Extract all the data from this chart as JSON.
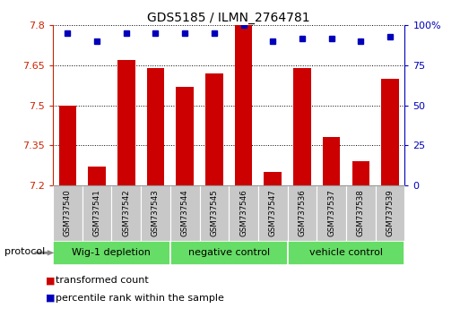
{
  "title": "GDS5185 / ILMN_2764781",
  "samples": [
    "GSM737540",
    "GSM737541",
    "GSM737542",
    "GSM737543",
    "GSM737544",
    "GSM737545",
    "GSM737546",
    "GSM737547",
    "GSM737536",
    "GSM737537",
    "GSM737538",
    "GSM737539"
  ],
  "red_values": [
    7.5,
    7.27,
    7.67,
    7.64,
    7.57,
    7.62,
    7.8,
    7.25,
    7.64,
    7.38,
    7.29,
    7.6
  ],
  "blue_values": [
    95,
    90,
    95,
    95,
    95,
    95,
    100,
    90,
    92,
    92,
    90,
    93
  ],
  "ylim_left": [
    7.2,
    7.8
  ],
  "ylim_right": [
    0,
    100
  ],
  "yticks_left": [
    7.2,
    7.35,
    7.5,
    7.65,
    7.8
  ],
  "yticks_right": [
    0,
    25,
    50,
    75,
    100
  ],
  "groups": [
    {
      "label": "Wig-1 depletion",
      "indices": [
        0,
        3
      ]
    },
    {
      "label": "negative control",
      "indices": [
        4,
        7
      ]
    },
    {
      "label": "vehicle control",
      "indices": [
        8,
        11
      ]
    }
  ],
  "group_color_light": "#C8F0C8",
  "group_color_dark": "#66DD66",
  "bar_color": "#CC0000",
  "dot_color": "#0000BB",
  "left_axis_color": "#CC2200",
  "right_axis_color": "#0000BB",
  "protocol_label": "protocol",
  "legend_red": "transformed count",
  "legend_blue": "percentile rank within the sample",
  "bar_width": 0.6
}
